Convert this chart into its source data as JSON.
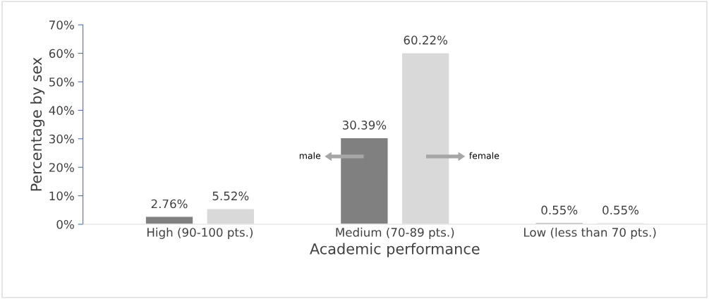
{
  "chart_data": {
    "type": "bar",
    "xlabel": "Academic performance",
    "ylabel": "Percentage by sex",
    "categories": [
      "High (90-100 pts.)",
      "Medium (70-89 pts.)",
      "Low (less than 70 pts.)"
    ],
    "series": [
      {
        "name": "male",
        "color": "#808080",
        "values": [
          2.76,
          30.39,
          0.55
        ],
        "value_labels": [
          "2.76%",
          "30.39%",
          "0.55%"
        ]
      },
      {
        "name": "female",
        "color": "#d9d9d9",
        "values": [
          5.52,
          60.22,
          0.55
        ],
        "value_labels": [
          "5.52%",
          "60.22%",
          "0.55%"
        ]
      }
    ],
    "ylim": [
      0,
      70
    ],
    "yticks": [
      {
        "value": 0,
        "label": "0%"
      },
      {
        "value": 10,
        "label": "10%"
      },
      {
        "value": 20,
        "label": "20%"
      },
      {
        "value": 30,
        "label": "30%"
      },
      {
        "value": 40,
        "label": "40%"
      },
      {
        "value": 50,
        "label": "50%"
      },
      {
        "value": 60,
        "label": "60%"
      },
      {
        "value": 70,
        "label": "70%"
      }
    ],
    "grid": false,
    "legend": false
  }
}
